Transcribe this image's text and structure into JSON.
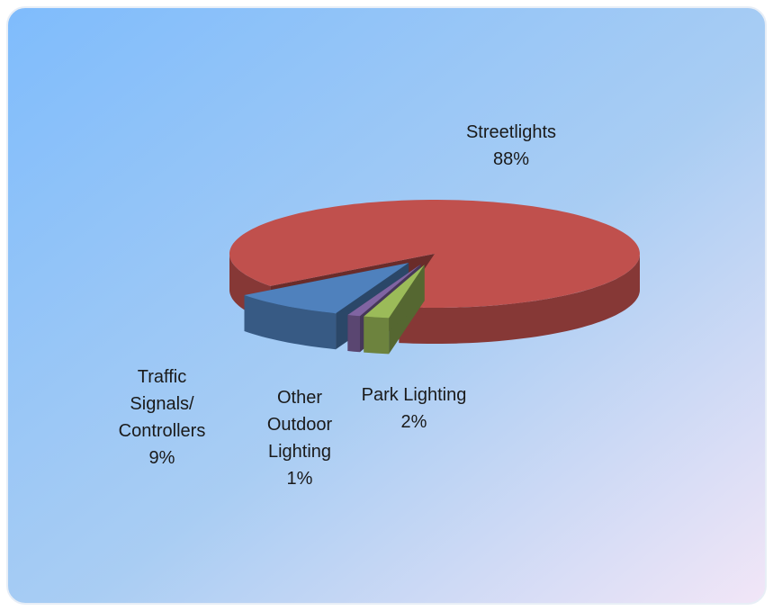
{
  "chart_data": {
    "type": "pie",
    "categories": [
      "Streetlights",
      "Traffic Signals/ Controllers",
      "Other Outdoor Lighting",
      "Park Lighting"
    ],
    "values": [
      88,
      9,
      1,
      2
    ],
    "value_labels": [
      "88%",
      "9%",
      "1%",
      "2%"
    ],
    "colors": [
      "#c0504d",
      "#4f81bd",
      "#8064a2",
      "#9bbb59"
    ]
  }
}
